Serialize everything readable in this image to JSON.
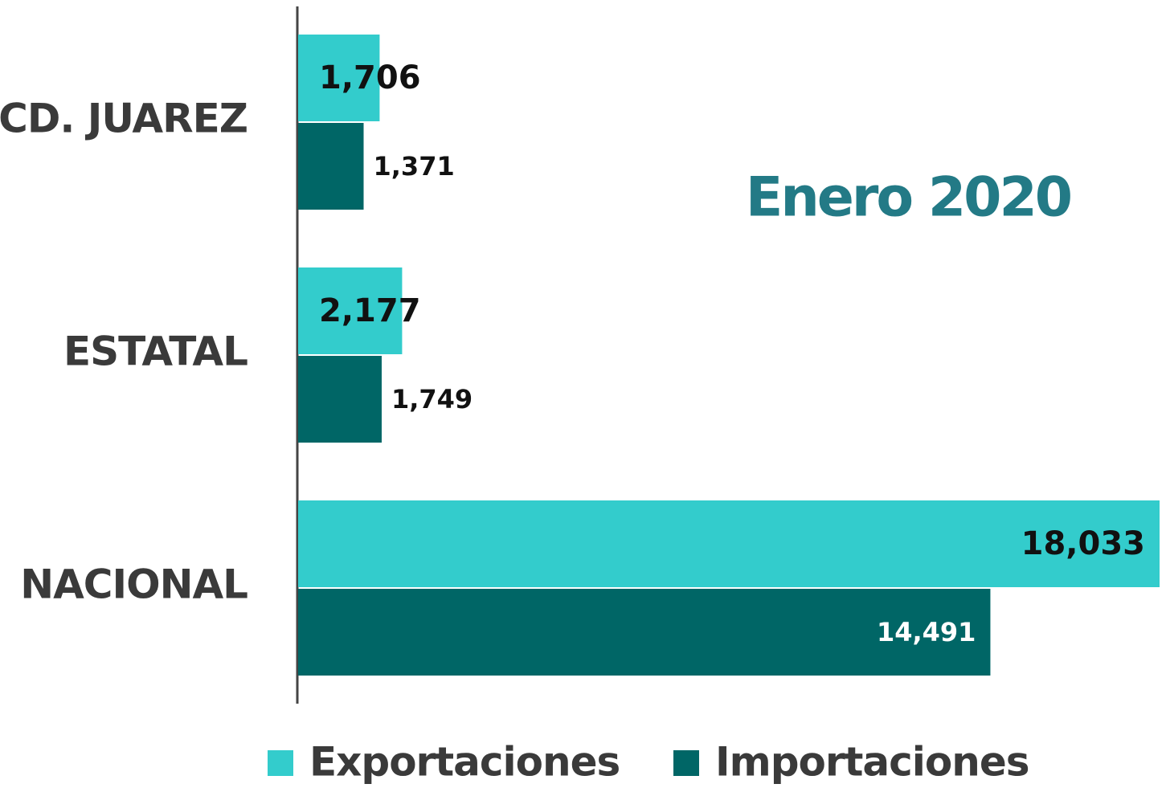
{
  "chart_data": {
    "type": "hbar",
    "annotation": "Enero 2020",
    "categories": [
      "CD. JUAREZ",
      "ESTATAL",
      "NACIONAL"
    ],
    "series": [
      {
        "name": "Exportaciones",
        "color": "#33cccc",
        "values": [
          1706,
          2177,
          18033
        ],
        "value_labels": [
          "1,706",
          "2,177",
          "18,033"
        ]
      },
      {
        "name": "Importaciones",
        "color": "#006666",
        "values": [
          1371,
          1749,
          14491
        ],
        "value_labels": [
          "1,371",
          "1,749",
          "14,491"
        ]
      }
    ],
    "xlim": [
      0,
      18033
    ],
    "legend": "bottom"
  }
}
